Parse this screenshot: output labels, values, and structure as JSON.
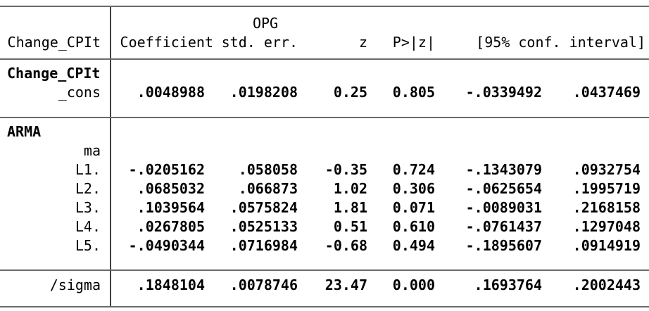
{
  "colors": {
    "rule": "#6a6a6a",
    "divider": "#3f3f3f",
    "text": "#000000"
  },
  "header": {
    "depvar": "Change_CPIt",
    "se_group_label": "OPG",
    "columns": {
      "coefficient": "Coefficient",
      "std_err": "std. err.",
      "z": "z",
      "p": "P>|z|",
      "ci": "[95% conf. interval]"
    }
  },
  "equations": [
    {
      "name": "Change_CPIt",
      "rows": [
        {
          "label": "_cons",
          "coef": ".0048988",
          "se": ".0198208",
          "z": "0.25",
          "p": "0.805",
          "ci_lo": "-.0339492",
          "ci_hi": ".0437469"
        }
      ]
    },
    {
      "name": "ARMA",
      "group": "ma",
      "rows": [
        {
          "label": "L1.",
          "coef": "-.0205162",
          "se": ".058058",
          "z": "-0.35",
          "p": "0.724",
          "ci_lo": "-.1343079",
          "ci_hi": ".0932754"
        },
        {
          "label": "L2.",
          "coef": ".0685032",
          "se": ".066873",
          "z": "1.02",
          "p": "0.306",
          "ci_lo": "-.0625654",
          "ci_hi": ".1995719"
        },
        {
          "label": "L3.",
          "coef": ".1039564",
          "se": ".0575824",
          "z": "1.81",
          "p": "0.071",
          "ci_lo": "-.0089031",
          "ci_hi": ".2168158"
        },
        {
          "label": "L4.",
          "coef": ".0267805",
          "se": ".0525133",
          "z": "0.51",
          "p": "0.610",
          "ci_lo": "-.0761437",
          "ci_hi": ".1297048"
        },
        {
          "label": "L5.",
          "coef": "-.0490344",
          "se": ".0716984",
          "z": "-0.68",
          "p": "0.494",
          "ci_lo": "-.1895607",
          "ci_hi": ".0914919"
        }
      ]
    }
  ],
  "sigma_row": {
    "label": "/sigma",
    "coef": ".1848104",
    "se": ".0078746",
    "z": "23.47",
    "p": "0.000",
    "ci_lo": ".1693764",
    "ci_hi": ".2002443"
  }
}
